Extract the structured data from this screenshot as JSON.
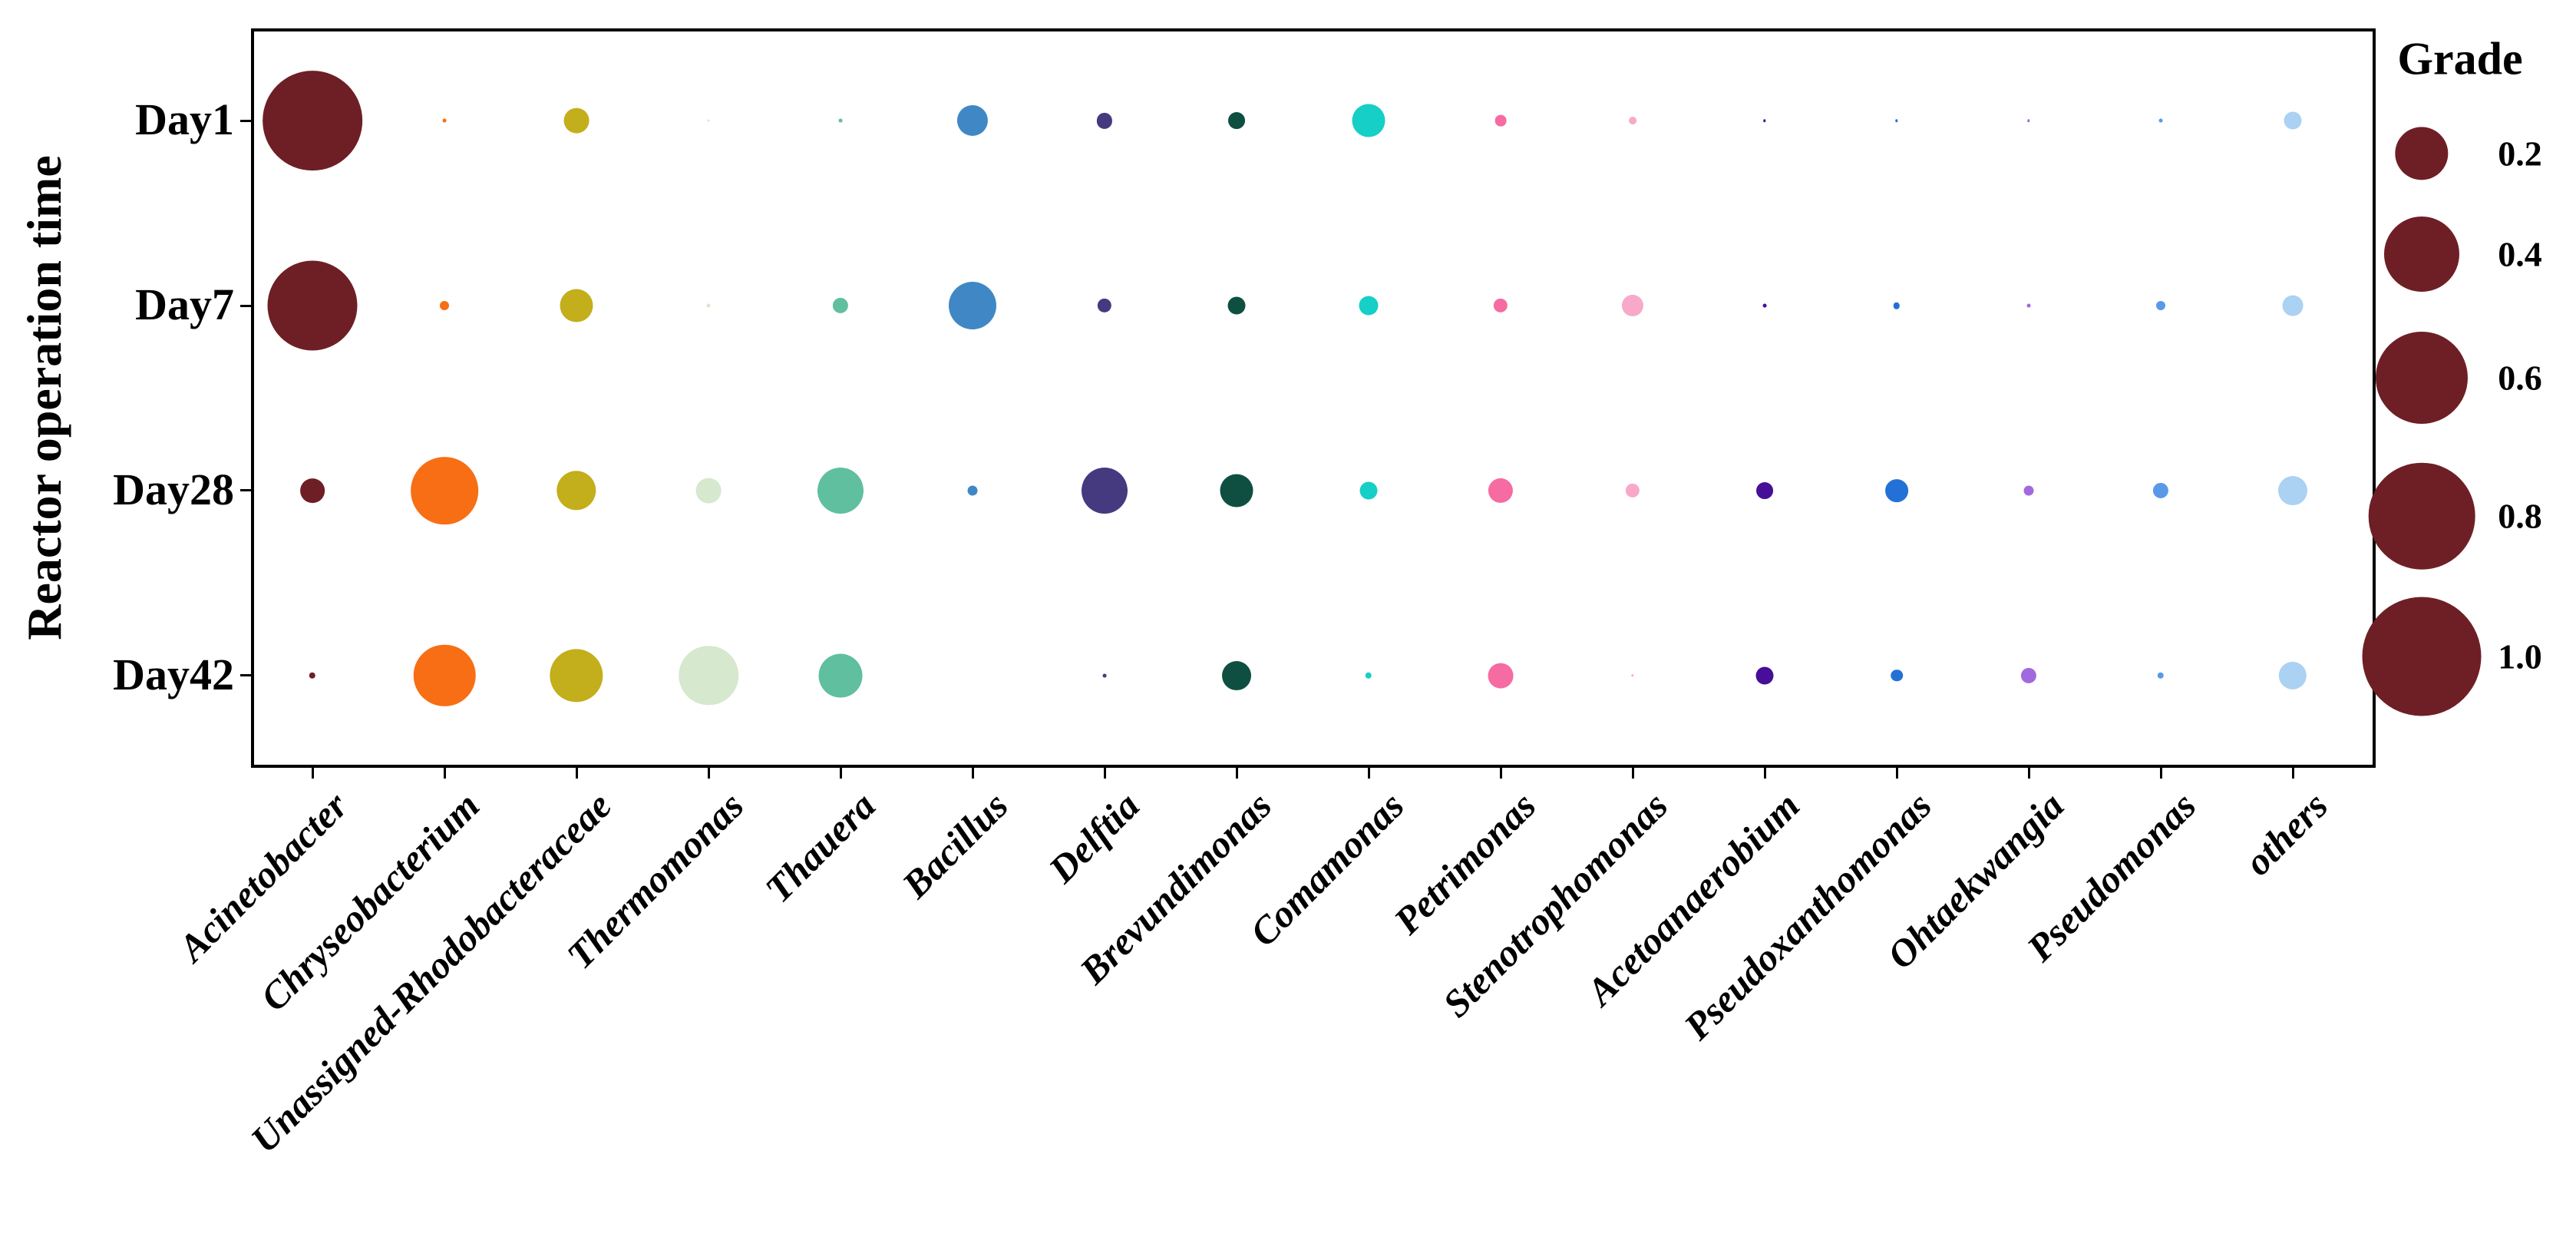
{
  "figure": {
    "y_axis_title": "Reactor operation time"
  },
  "chart_data": {
    "type": "scatter",
    "subtype": "bubble-matrix",
    "title": "",
    "xlabel": "",
    "ylabel": "Reactor operation time",
    "y_categories": [
      "Day1",
      "Day7",
      "Day28",
      "Day42"
    ],
    "x_categories": [
      "Acinetobacter",
      "Chryseobacterium",
      "Unassigned-Rhodobacteraceae",
      "Thermomonas",
      "Thauera",
      "Bacillus",
      "Delftia",
      "Brevundimonas",
      "Comamonas",
      "Petrimonas",
      "Stenotrophomonas",
      "Acetoanaerobium",
      "Pseudoxanthomonas",
      "Ohtaekwangia",
      "Pseudomonas",
      "others"
    ],
    "value_name": "Grade",
    "size_encoding": "bubble area proportional to Grade value; diameter_px = 155 * sqrt(value)",
    "grid": false,
    "series": [
      {
        "name": "Acinetobacter",
        "color": "#6e1f26",
        "values": [
          0.7,
          0.57,
          0.042,
          0.003
        ]
      },
      {
        "name": "Chryseobacterium",
        "color": "#f86e15",
        "values": [
          0.001,
          0.006,
          0.32,
          0.27
        ]
      },
      {
        "name": "Unassigned-Rhodobacteraceae",
        "color": "#c3ae1b",
        "values": [
          0.045,
          0.077,
          0.11,
          0.2
        ]
      },
      {
        "name": "Thermomonas",
        "color": "#d6e8cd",
        "values": [
          0.0003,
          0.001,
          0.045,
          0.25
        ]
      },
      {
        "name": "Thauera",
        "color": "#5fbf9f",
        "values": [
          0.001,
          0.017,
          0.15,
          0.135
        ]
      },
      {
        "name": "Bacillus",
        "color": "#3f88c5",
        "values": [
          0.067,
          0.16,
          0.007,
          0
        ]
      },
      {
        "name": "Delftia",
        "color": "#453980",
        "values": [
          0.017,
          0.014,
          0.15,
          0.001
        ]
      },
      {
        "name": "Brevundimonas",
        "color": "#0e4f42",
        "values": [
          0.02,
          0.022,
          0.077,
          0.06
        ]
      },
      {
        "name": "Comamonas",
        "color": "#16cfc6",
        "values": [
          0.077,
          0.026,
          0.022,
          0.003
        ]
      },
      {
        "name": "Petrimonas",
        "color": "#f56ba2",
        "values": [
          0.009,
          0.014,
          0.043,
          0.045
        ]
      },
      {
        "name": "Stenotrophomonas",
        "color": "#f8a8c8",
        "values": [
          0.004,
          0.033,
          0.014,
          0.0005
        ]
      },
      {
        "name": "Acetoanaerobium",
        "color": "#470e97",
        "values": [
          0.0005,
          0.001,
          0.02,
          0.022
        ]
      },
      {
        "name": "Pseudoxanthomonas",
        "color": "#2371d6",
        "values": [
          0.0005,
          0.003,
          0.037,
          0.01
        ]
      },
      {
        "name": "Ohtaekwangia",
        "color": "#a269de",
        "values": [
          0.0005,
          0.001,
          0.007,
          0.017
        ]
      },
      {
        "name": "Pseudomonas",
        "color": "#5a99e8",
        "values": [
          0.001,
          0.006,
          0.017,
          0.003
        ]
      },
      {
        "name": "others",
        "color": "#abd1f3",
        "values": [
          0.022,
          0.03,
          0.06,
          0.055
        ]
      }
    ],
    "legend": {
      "title": "Grade",
      "position": "right",
      "sizes": [
        0.2,
        0.4,
        0.6,
        0.8,
        1.0
      ],
      "labels": [
        "0.2",
        "0.4",
        "0.6",
        "0.8",
        "1.0"
      ],
      "color": "#6e1f26"
    }
  }
}
